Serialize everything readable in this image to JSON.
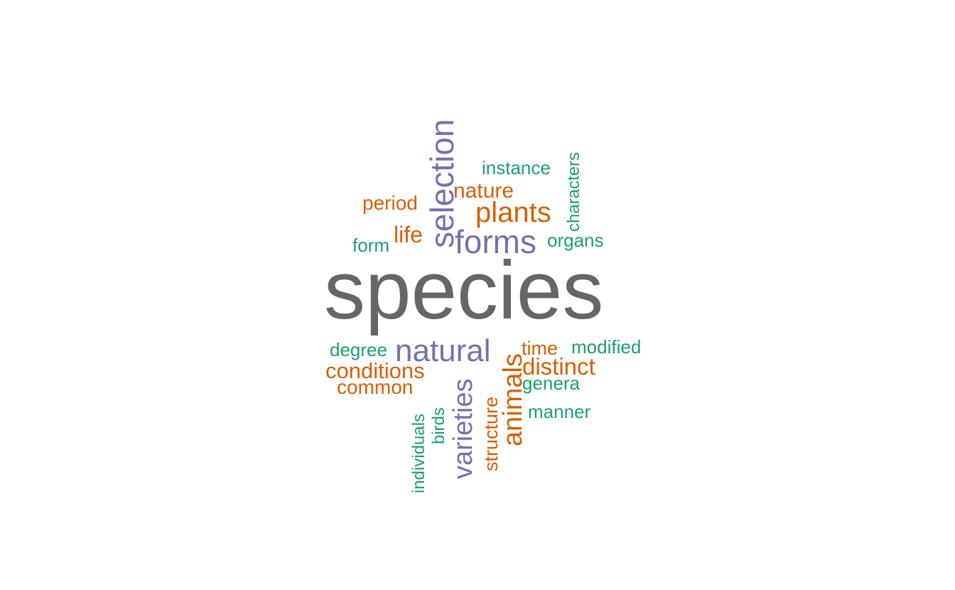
{
  "colors": {
    "grey": "#666666",
    "purple": "#7570b3",
    "orange": "#d95f02",
    "green": "#1b9e77"
  },
  "words": [
    {
      "key": "species",
      "text": "species",
      "color": "grey"
    },
    {
      "key": "selection",
      "text": "selection",
      "color": "purple"
    },
    {
      "key": "forms",
      "text": "forms",
      "color": "purple"
    },
    {
      "key": "natural",
      "text": "natural",
      "color": "purple"
    },
    {
      "key": "varieties",
      "text": "varieties",
      "color": "purple"
    },
    {
      "key": "plants",
      "text": "plants",
      "color": "orange"
    },
    {
      "key": "nature",
      "text": "nature",
      "color": "orange"
    },
    {
      "key": "period",
      "text": "period",
      "color": "orange"
    },
    {
      "key": "life",
      "text": "life",
      "color": "orange"
    },
    {
      "key": "conditions",
      "text": "conditions",
      "color": "orange"
    },
    {
      "key": "common",
      "text": "common",
      "color": "orange"
    },
    {
      "key": "time",
      "text": "time",
      "color": "orange"
    },
    {
      "key": "distinct",
      "text": "distinct",
      "color": "orange"
    },
    {
      "key": "animals",
      "text": "animals",
      "color": "orange"
    },
    {
      "key": "structure",
      "text": "structure",
      "color": "orange"
    },
    {
      "key": "instance",
      "text": "instance",
      "color": "green"
    },
    {
      "key": "characters",
      "text": "characters",
      "color": "green"
    },
    {
      "key": "organs",
      "text": "organs",
      "color": "green"
    },
    {
      "key": "form",
      "text": "form",
      "color": "green"
    },
    {
      "key": "degree",
      "text": "degree",
      "color": "green"
    },
    {
      "key": "modified",
      "text": "modified",
      "color": "green"
    },
    {
      "key": "genera",
      "text": "genera",
      "color": "green"
    },
    {
      "key": "manner",
      "text": "manner",
      "color": "green"
    },
    {
      "key": "birds",
      "text": "birds",
      "color": "green"
    },
    {
      "key": "individuals",
      "text": "individuals",
      "color": "green"
    }
  ]
}
